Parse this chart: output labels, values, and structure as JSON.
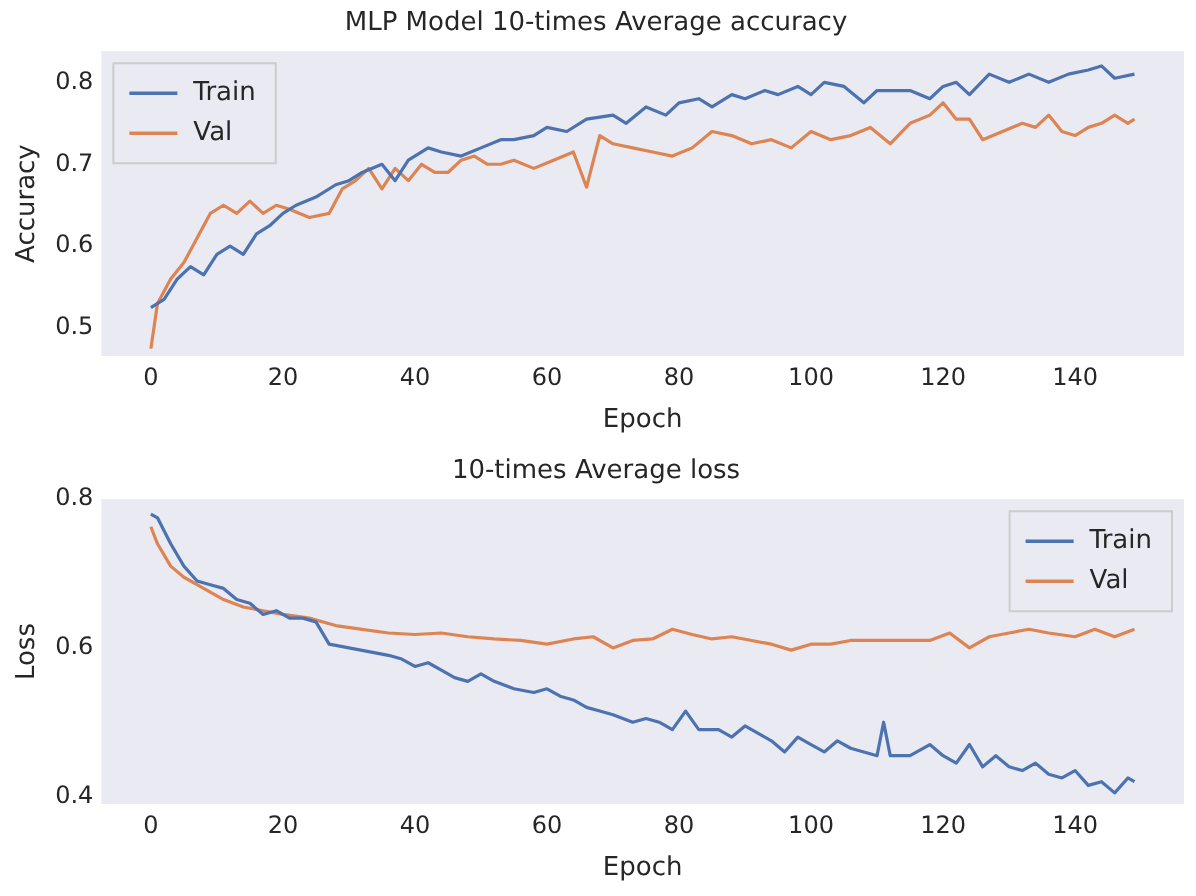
{
  "chart_data": [
    {
      "type": "line",
      "title": "MLP Model 10-times Average accuracy",
      "xlabel": "Epoch",
      "ylabel": "Accuracy",
      "xlim": [
        -7.5,
        156.5
      ],
      "xticks": [
        0,
        20,
        40,
        60,
        80,
        100,
        120,
        140
      ],
      "ylim": [
        0.466,
        0.838
      ],
      "yticks": [
        0.5,
        0.6,
        0.7,
        0.8
      ],
      "legend": "top left",
      "grid": false,
      "series": [
        {
          "name": "Train",
          "color": "#4c72b0",
          "x": [
            0,
            2,
            4,
            6,
            8,
            10,
            12,
            14,
            16,
            18,
            20,
            22,
            25,
            28,
            30,
            32,
            35,
            37,
            39,
            42,
            44,
            47,
            50,
            53,
            55,
            58,
            60,
            63,
            66,
            70,
            72,
            75,
            78,
            80,
            83,
            85,
            88,
            90,
            93,
            95,
            98,
            100,
            102,
            105,
            108,
            110,
            115,
            118,
            120,
            122,
            124,
            127,
            130,
            133,
            136,
            139,
            142,
            144,
            146,
            149
          ],
          "values": [
            0.525,
            0.535,
            0.56,
            0.575,
            0.565,
            0.59,
            0.6,
            0.59,
            0.615,
            0.625,
            0.64,
            0.65,
            0.66,
            0.675,
            0.68,
            0.69,
            0.7,
            0.68,
            0.705,
            0.72,
            0.715,
            0.71,
            0.72,
            0.73,
            0.73,
            0.735,
            0.745,
            0.74,
            0.755,
            0.76,
            0.75,
            0.77,
            0.76,
            0.775,
            0.78,
            0.77,
            0.785,
            0.78,
            0.79,
            0.785,
            0.795,
            0.785,
            0.8,
            0.795,
            0.775,
            0.79,
            0.79,
            0.78,
            0.795,
            0.8,
            0.785,
            0.81,
            0.8,
            0.81,
            0.8,
            0.81,
            0.815,
            0.82,
            0.805,
            0.81
          ]
        },
        {
          "name": "Val",
          "color": "#dd8452",
          "x": [
            0,
            1,
            3,
            5,
            7,
            9,
            11,
            13,
            15,
            17,
            19,
            21,
            24,
            27,
            29,
            31,
            33,
            35,
            37,
            39,
            41,
            43,
            45,
            47,
            49,
            51,
            53,
            55,
            58,
            61,
            64,
            66,
            68,
            70,
            73,
            76,
            79,
            82,
            85,
            88,
            91,
            94,
            97,
            100,
            103,
            106,
            109,
            112,
            115,
            118,
            120,
            122,
            124,
            126,
            129,
            132,
            134,
            136,
            138,
            140,
            142,
            144,
            146,
            148,
            149
          ],
          "values": [
            0.475,
            0.53,
            0.56,
            0.58,
            0.61,
            0.64,
            0.65,
            0.64,
            0.655,
            0.64,
            0.65,
            0.645,
            0.635,
            0.64,
            0.67,
            0.68,
            0.695,
            0.67,
            0.695,
            0.68,
            0.7,
            0.69,
            0.69,
            0.705,
            0.71,
            0.7,
            0.7,
            0.705,
            0.695,
            0.705,
            0.715,
            0.672,
            0.735,
            0.725,
            0.72,
            0.715,
            0.71,
            0.72,
            0.74,
            0.735,
            0.725,
            0.73,
            0.72,
            0.74,
            0.73,
            0.735,
            0.745,
            0.725,
            0.75,
            0.76,
            0.775,
            0.755,
            0.755,
            0.73,
            0.74,
            0.75,
            0.745,
            0.76,
            0.74,
            0.735,
            0.745,
            0.75,
            0.76,
            0.75,
            0.755
          ]
        }
      ]
    },
    {
      "type": "line",
      "title": "10-times Average loss",
      "xlabel": "Epoch",
      "ylabel": "Loss",
      "xlim": [
        -7.5,
        156.5
      ],
      "xticks": [
        0,
        20,
        40,
        60,
        80,
        100,
        120,
        140
      ],
      "ylim": [
        0.39,
        0.8
      ],
      "yticks": [
        0.4,
        0.6,
        0.8
      ],
      "legend": "top right",
      "grid": false,
      "series": [
        {
          "name": "Train",
          "color": "#4c72b0",
          "x": [
            0,
            1,
            3,
            5,
            7,
            9,
            11,
            13,
            15,
            17,
            19,
            21,
            23,
            25,
            27,
            30,
            33,
            36,
            38,
            40,
            42,
            44,
            46,
            48,
            50,
            52,
            55,
            58,
            60,
            62,
            64,
            66,
            68,
            70,
            73,
            75,
            77,
            79,
            81,
            83,
            86,
            88,
            90,
            92,
            94,
            96,
            98,
            100,
            102,
            104,
            106,
            108,
            110,
            111,
            112,
            115,
            118,
            120,
            122,
            124,
            126,
            128,
            130,
            132,
            134,
            136,
            138,
            140,
            142,
            144,
            146,
            148,
            149
          ],
          "values": [
            0.78,
            0.775,
            0.74,
            0.71,
            0.69,
            0.685,
            0.68,
            0.665,
            0.66,
            0.645,
            0.65,
            0.64,
            0.64,
            0.635,
            0.605,
            0.6,
            0.595,
            0.59,
            0.585,
            0.575,
            0.58,
            0.57,
            0.56,
            0.555,
            0.565,
            0.555,
            0.545,
            0.54,
            0.545,
            0.535,
            0.53,
            0.52,
            0.515,
            0.51,
            0.5,
            0.505,
            0.5,
            0.49,
            0.515,
            0.49,
            0.49,
            0.48,
            0.495,
            0.485,
            0.475,
            0.46,
            0.48,
            0.47,
            0.46,
            0.475,
            0.465,
            0.46,
            0.455,
            0.5,
            0.455,
            0.455,
            0.47,
            0.455,
            0.445,
            0.47,
            0.44,
            0.455,
            0.44,
            0.435,
            0.445,
            0.43,
            0.425,
            0.435,
            0.415,
            0.42,
            0.405,
            0.425,
            0.42
          ]
        },
        {
          "name": "Val",
          "color": "#dd8452",
          "x": [
            0,
            1,
            3,
            5,
            8,
            11,
            14,
            17,
            20,
            24,
            28,
            32,
            36,
            40,
            44,
            48,
            52,
            56,
            60,
            64,
            67,
            70,
            73,
            76,
            79,
            82,
            85,
            88,
            91,
            94,
            97,
            100,
            103,
            106,
            110,
            114,
            118,
            121,
            124,
            127,
            130,
            133,
            136,
            140,
            143,
            146,
            149
          ],
          "values": [
            0.763,
            0.74,
            0.71,
            0.695,
            0.68,
            0.665,
            0.655,
            0.65,
            0.645,
            0.64,
            0.63,
            0.625,
            0.62,
            0.618,
            0.62,
            0.615,
            0.612,
            0.61,
            0.605,
            0.612,
            0.615,
            0.6,
            0.61,
            0.612,
            0.625,
            0.618,
            0.612,
            0.615,
            0.61,
            0.605,
            0.597,
            0.605,
            0.605,
            0.61,
            0.61,
            0.61,
            0.61,
            0.62,
            0.6,
            0.615,
            0.62,
            0.625,
            0.62,
            0.615,
            0.625,
            0.615,
            0.625
          ]
        }
      ]
    }
  ]
}
